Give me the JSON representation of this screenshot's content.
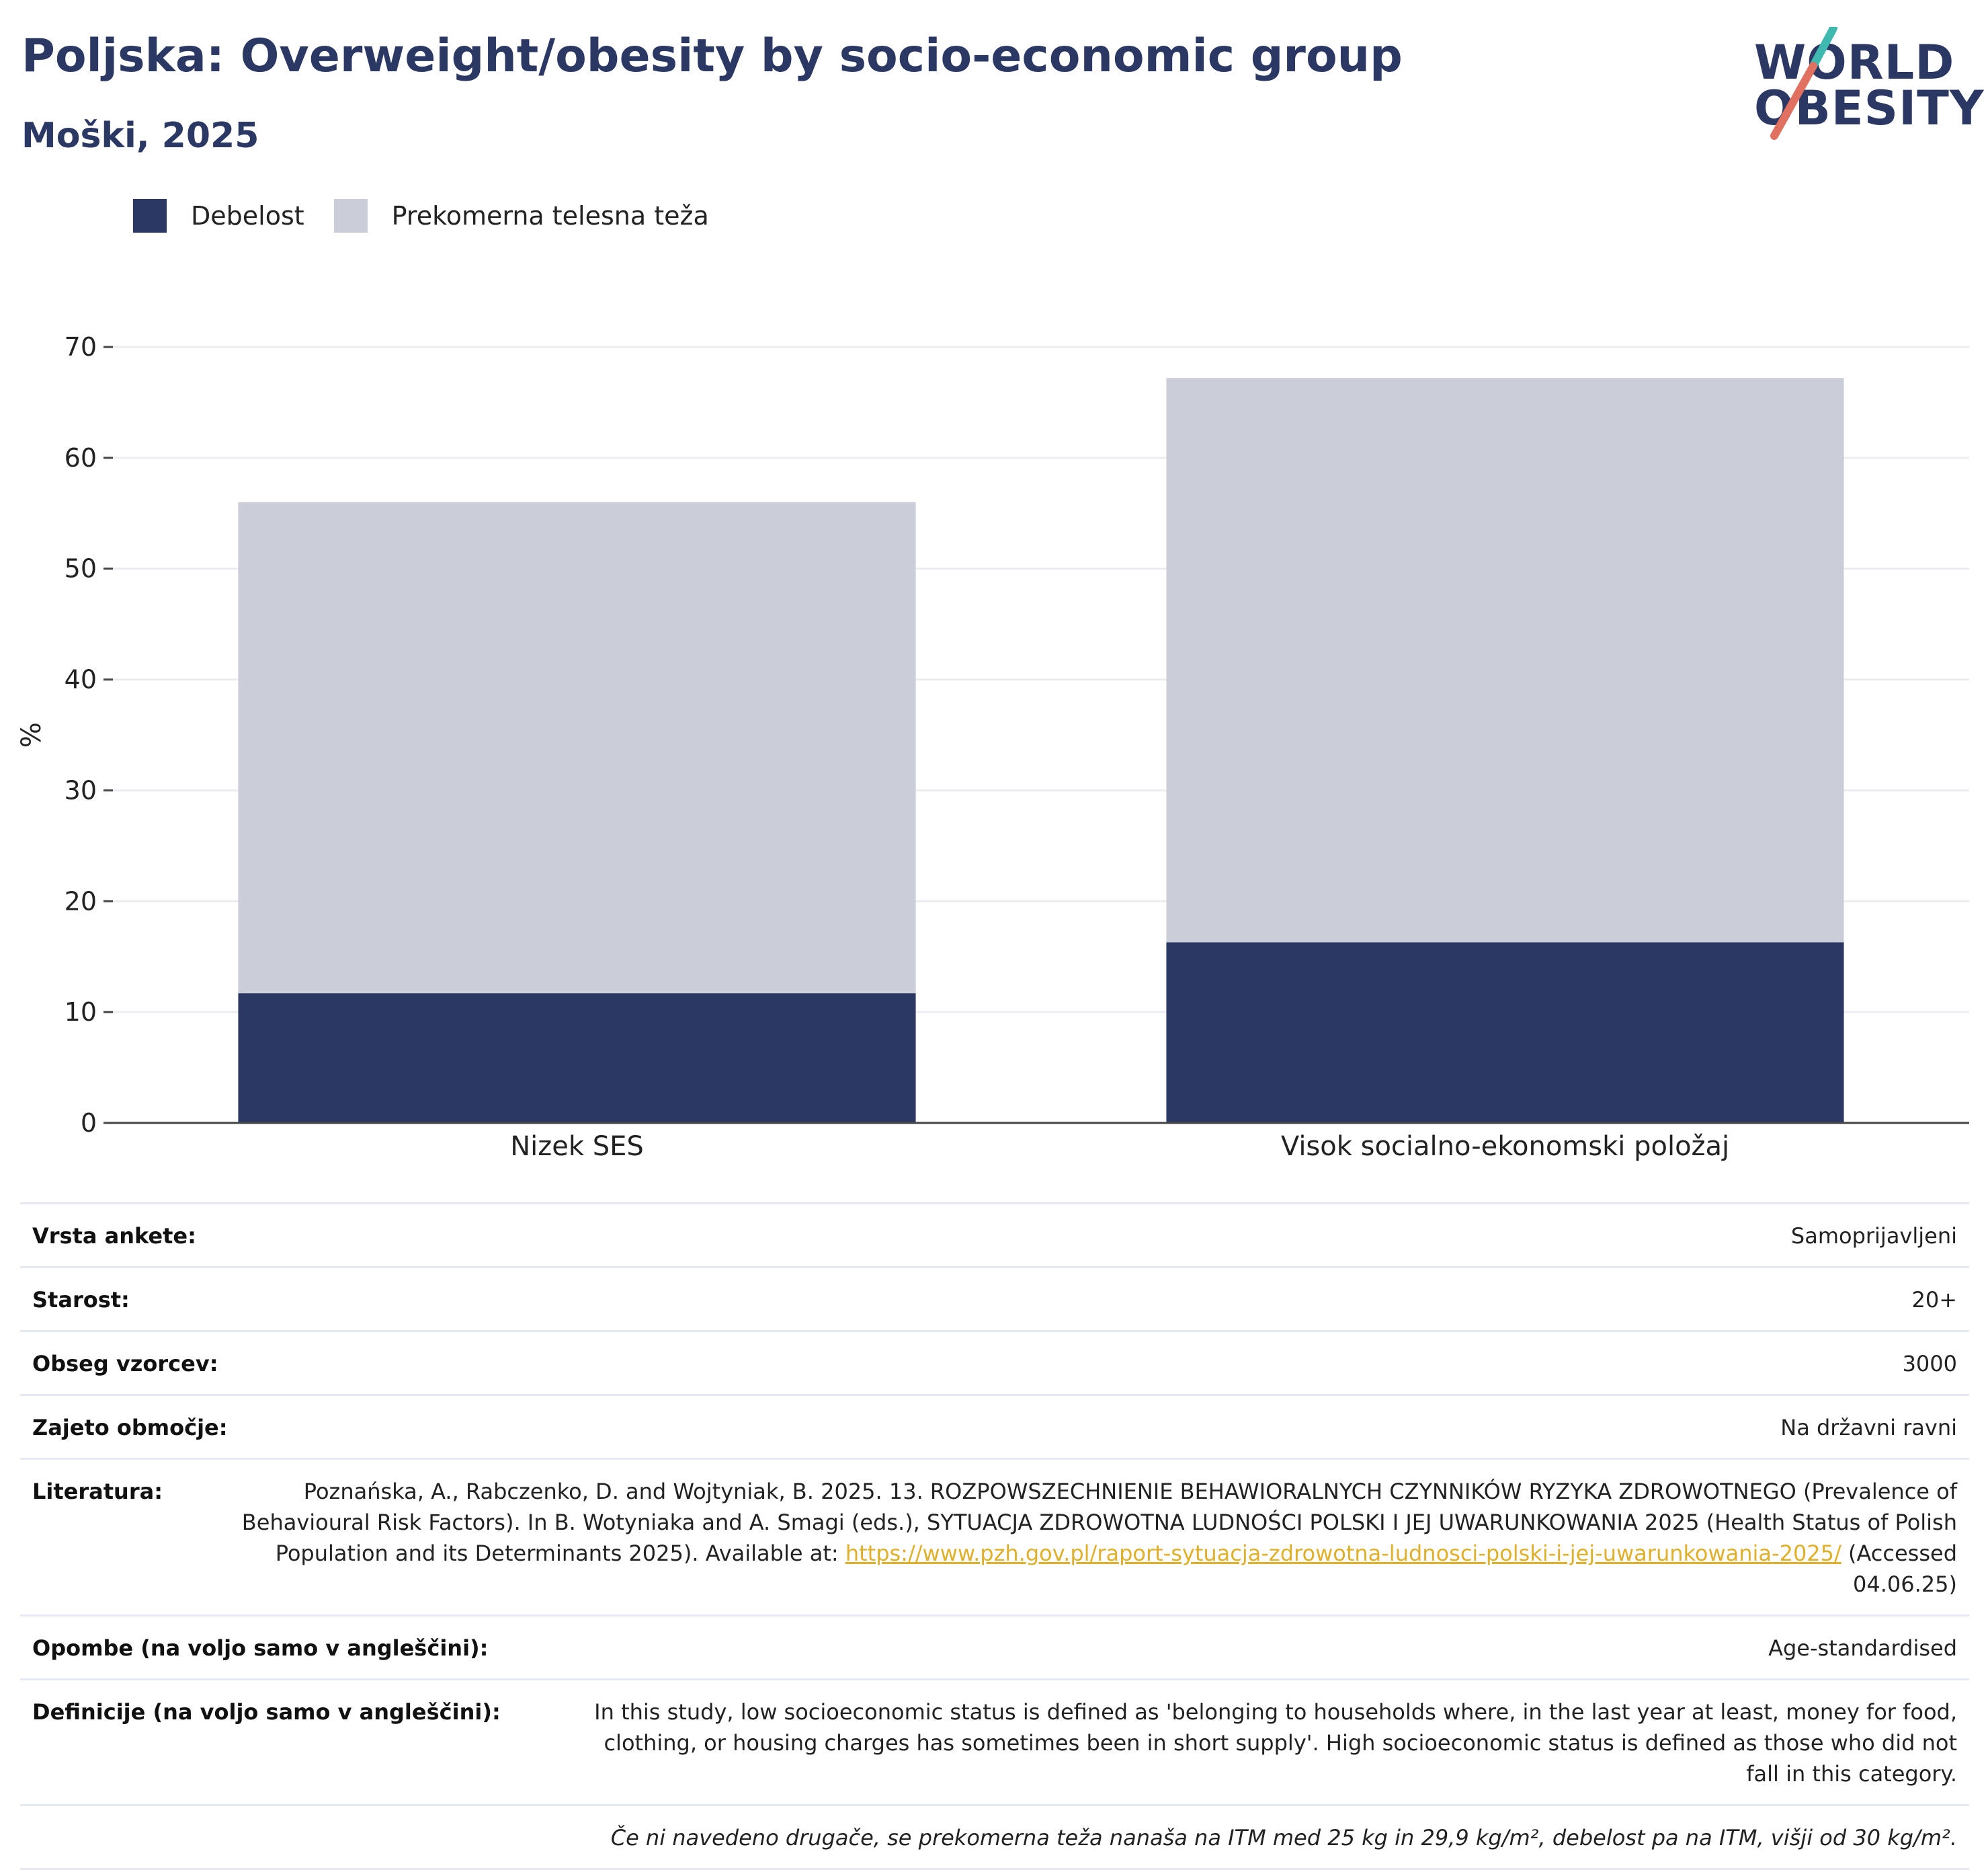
{
  "title": "Poljska: Overweight/obesity by socio-economic group",
  "subtitle": "Moški, 2025",
  "logo": {
    "line1": "WORLD",
    "line2": "OBESITY"
  },
  "colors": {
    "obesity": "#2b3864",
    "overweight": "#cbcdd8",
    "title": "#2b3864",
    "link": "#e0b02a"
  },
  "legend": [
    {
      "label": "Debelost",
      "color": "#2b3864"
    },
    {
      "label": "Prekomerna telesna teža",
      "color": "#cbcdd8"
    }
  ],
  "chart_data": {
    "type": "bar",
    "stacked": true,
    "categories": [
      "Nizek SES",
      "Visok socialno-ekonomski položaj"
    ],
    "series": [
      {
        "name": "Debelost",
        "values": [
          11.7,
          16.3
        ]
      },
      {
        "name": "Prekomerna telesna teža",
        "values": [
          44.3,
          50.9
        ]
      }
    ],
    "ylabel": "%",
    "ylim": [
      0,
      70
    ],
    "yticks": [
      0,
      10,
      20,
      30,
      40,
      50,
      60,
      70
    ],
    "grid": true,
    "legend_position": "top-left"
  },
  "info": {
    "survey_type": {
      "label": "Vrsta ankete:",
      "value": "Samoprijavljeni"
    },
    "age": {
      "label": "Starost:",
      "value": "20+"
    },
    "sample": {
      "label": "Obseg vzorcev:",
      "value": "3000"
    },
    "coverage": {
      "label": "Zajeto območje:",
      "value": "Na državni ravni"
    },
    "literature": {
      "label": "Literatura:",
      "text": "Poznańska, A., Rabczenko, D. and Wojtyniak, B. 2025. 13. ROZPOWSZECHNIENIE BEHAWIORALNYCH CZYNNIKÓW RYZYKA ZDROWOTNEGO (Prevalence of Behavioural Risk Factors). In B. Wotyniaka and A. Smagi (eds.), SYTUACJA ZDROWOTNA LUDNOŚCI POLSKI I JEJ UWARUNKOWANIA 2025 (Health Status of Polish Population and its Determinants 2025). Available at:",
      "link": "https://www.pzh.gov.pl/raport-sytuacja-zdrowotna-ludnosci-polski-i-jej-uwarunkowania-2025/",
      "accessed": " (Accessed 04.06.25)"
    },
    "notes": {
      "label": "Opombe (na voljo samo v angleščini):",
      "value": "Age-standardised"
    },
    "definitions": {
      "label": "Definicije (na voljo samo v angleščini):",
      "value": "In this study, low socioeconomic status is defined as 'belonging to households where, in the last year at least, money for food, clothing, or housing charges has sometimes been in short supply'. High socioeconomic status is defined as those who did not fall in this category."
    },
    "footnote": "Če ni navedeno drugače, se prekomerna teža nanaša na ITM med 25 kg in 29,9 kg/m², debelost pa na ITM, višji od 30 kg/m²."
  }
}
